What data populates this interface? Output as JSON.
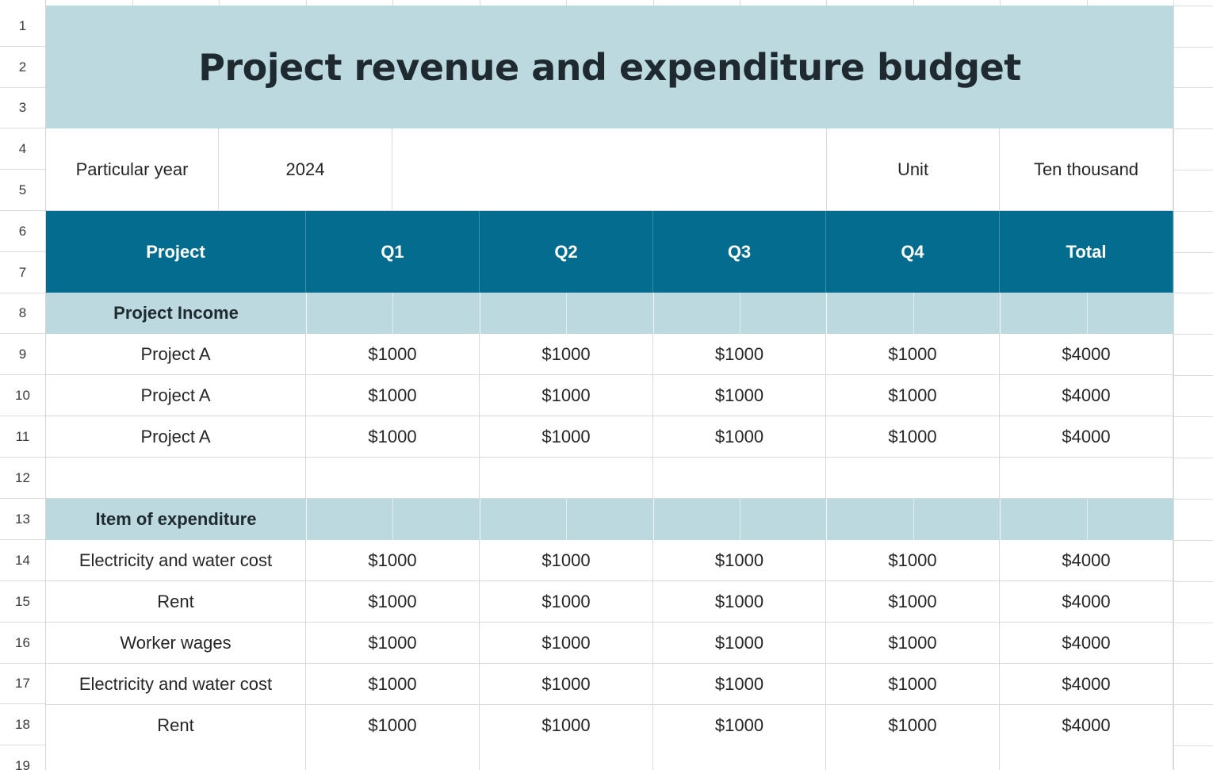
{
  "row_numbers": [
    "1",
    "2",
    "3",
    "4",
    "5",
    "6",
    "7",
    "8",
    "9",
    "10",
    "11",
    "12",
    "13",
    "14",
    "15",
    "16",
    "17",
    "18",
    "19"
  ],
  "title": "Project revenue and expenditure budget",
  "meta": {
    "year_label": "Particular year",
    "year_value": "2024",
    "unit_label": "Unit",
    "unit_value": "Ten thousand"
  },
  "header": {
    "project": "Project",
    "q1": "Q1",
    "q2": "Q2",
    "q3": "Q3",
    "q4": "Q4",
    "total": "Total"
  },
  "income": {
    "label": "Project Income",
    "rows": [
      {
        "name": "Project A",
        "q1": "$1000",
        "q2": "$1000",
        "q3": "$1000",
        "q4": "$1000",
        "total": "$4000"
      },
      {
        "name": "Project A",
        "q1": "$1000",
        "q2": "$1000",
        "q3": "$1000",
        "q4": "$1000",
        "total": "$4000"
      },
      {
        "name": "Project A",
        "q1": "$1000",
        "q2": "$1000",
        "q3": "$1000",
        "q4": "$1000",
        "total": "$4000"
      }
    ]
  },
  "expenditure": {
    "label": "Item of expenditure",
    "rows": [
      {
        "name": "Electricity and water cost",
        "q1": "$1000",
        "q2": "$1000",
        "q3": "$1000",
        "q4": "$1000",
        "total": "$4000"
      },
      {
        "name": "Rent",
        "q1": "$1000",
        "q2": "$1000",
        "q3": "$1000",
        "q4": "$1000",
        "total": "$4000"
      },
      {
        "name": "Worker wages",
        "q1": "$1000",
        "q2": "$1000",
        "q3": "$1000",
        "q4": "$1000",
        "total": "$4000"
      },
      {
        "name": "Electricity and water cost",
        "q1": "$1000",
        "q2": "$1000",
        "q3": "$1000",
        "q4": "$1000",
        "total": "$4000"
      },
      {
        "name": "Rent",
        "q1": "$1000",
        "q2": "$1000",
        "q3": "$1000",
        "q4": "$1000",
        "total": "$4000"
      }
    ]
  },
  "colors": {
    "title_band": "#bcd9e0",
    "header_band": "#046d8f",
    "grid": "#dcdcdc"
  }
}
